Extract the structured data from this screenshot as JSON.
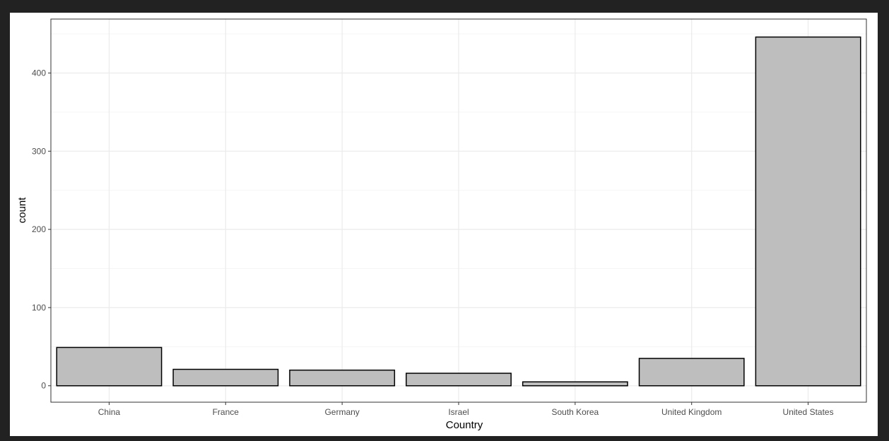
{
  "chart_data": {
    "type": "bar",
    "categories": [
      "China",
      "France",
      "Germany",
      "Israel",
      "South Korea",
      "United Kingdom",
      "United States"
    ],
    "values": [
      49,
      21,
      20,
      16,
      5,
      35,
      446
    ],
    "xlabel": "Country",
    "ylabel": "count",
    "ylim": [
      -21,
      469
    ],
    "yticks": [
      0,
      100,
      200,
      300,
      400
    ],
    "grid": true,
    "colors": {
      "bar_fill": "#bebebe",
      "bar_stroke": "#000000",
      "grid_major": "#ebebeb",
      "grid_minor": "#f5f5f5",
      "panel_border": "#333333"
    }
  }
}
